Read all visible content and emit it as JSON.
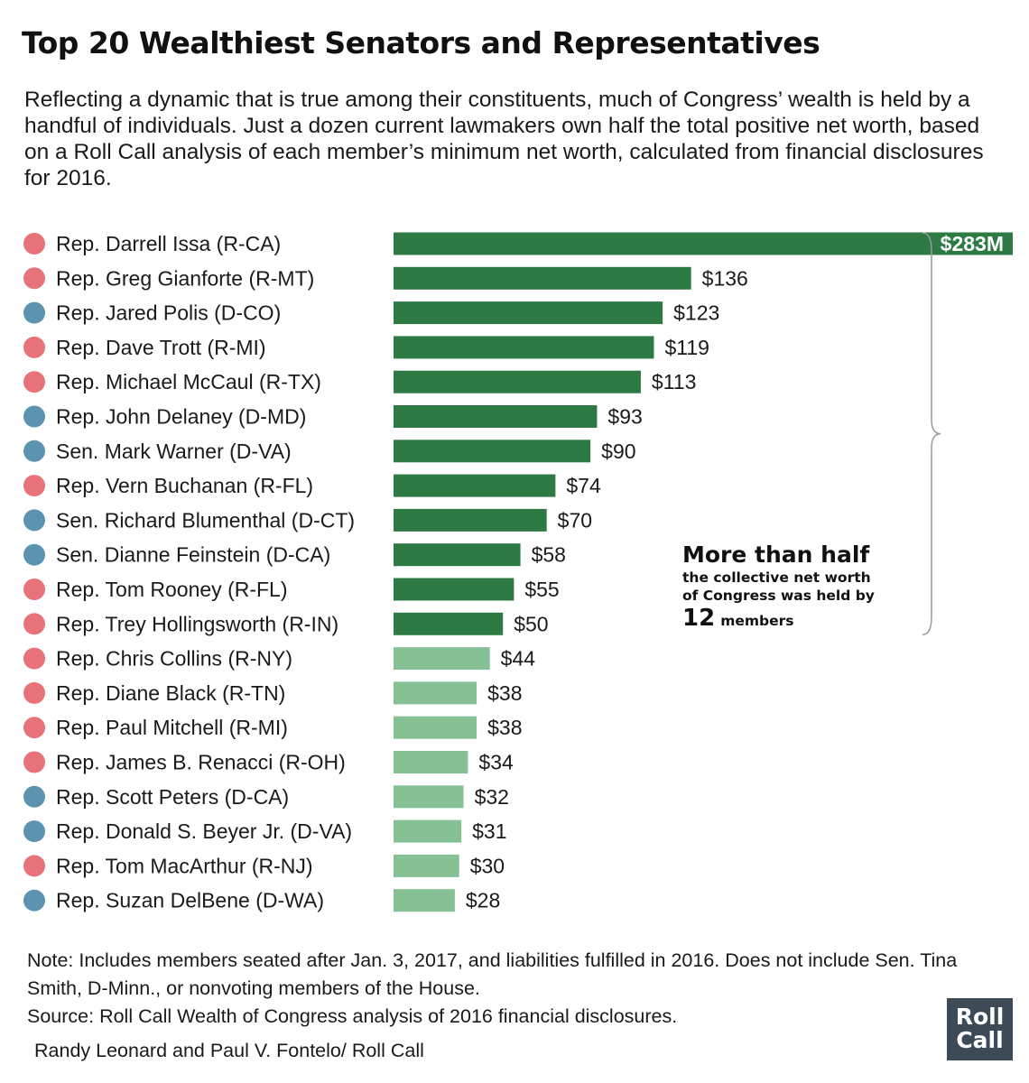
{
  "title": "Top 20 Wealthiest Senators and Representatives",
  "subtitle": "Reflecting a dynamic that is true among their constituents, much of Congress’ wealth is held by a handful of individuals. Just a dozen current lawmakers own half the total positive net worth, based on a Roll Call analysis of each member’s minimum net worth, calculated from financial disclosures for 2016.",
  "colors": {
    "republican": "#e8727a",
    "democrat": "#5b93b0",
    "top_half_bar": "#2e7a45",
    "other_bar": "#86c196",
    "bracket": "#999999"
  },
  "chart_data": {
    "type": "bar",
    "orientation": "horizontal",
    "unit": "millions of dollars",
    "xlim": [
      0,
      283
    ],
    "categories": [
      "Rep. Darrell Issa (R-CA)",
      "Rep. Greg Gianforte (R-MT)",
      "Rep. Jared Polis (D-CO)",
      "Rep. Dave Trott (R-MI)",
      "Rep. Michael McCaul (R-TX)",
      "Rep. John Delaney (D-MD)",
      "Sen. Mark Warner (D-VA)",
      "Rep. Vern Buchanan (R-FL)",
      "Sen. Richard Blumenthal (D-CT)",
      "Sen. Dianne Feinstein (D-CA)",
      "Rep. Tom Rooney (R-FL)",
      "Rep. Trey Hollingsworth (R-IN)",
      "Rep. Chris Collins (R-NY)",
      "Rep. Diane Black (R-TN)",
      "Rep. Paul Mitchell (R-MI)",
      "Rep. James B. Renacci (R-OH)",
      "Rep. Scott Peters (D-CA)",
      "Rep. Donald S. Beyer Jr. (D-VA)",
      "Rep. Tom MacArthur (R-NJ)",
      "Rep. Suzan DelBene (D-WA)"
    ],
    "values": [
      283,
      136,
      123,
      119,
      113,
      93,
      90,
      74,
      70,
      58,
      55,
      50,
      44,
      38,
      38,
      34,
      32,
      31,
      30,
      28
    ],
    "value_labels": [
      "$283M",
      "$136",
      "$123",
      "$119",
      "$113",
      "$93",
      "$90",
      "$74",
      "$70",
      "$58",
      "$55",
      "$50",
      "$44",
      "$38",
      "$38",
      "$34",
      "$32",
      "$31",
      "$30",
      "$28"
    ],
    "party": [
      "R",
      "R",
      "D",
      "R",
      "R",
      "D",
      "D",
      "R",
      "D",
      "D",
      "R",
      "R",
      "R",
      "R",
      "R",
      "R",
      "D",
      "D",
      "R",
      "D"
    ],
    "highlight_top_n": 12,
    "annotation": {
      "headline": "More than half",
      "line1": "the collective net worth",
      "line2": "of Congress was held by",
      "number": "12",
      "suffix": "members"
    }
  },
  "note": "Note: Includes members seated after Jan. 3, 2017, and liabilities fulfilled in 2016. Does not include Sen. Tina Smith, D-Minn., or nonvoting members of the House.",
  "source": "Source: Roll Call Wealth of Congress analysis of 2016 financial disclosures.",
  "credit": "Randy Leonard and Paul V. Fontelo/ Roll Call",
  "logo": {
    "line1": "Roll",
    "line2": "Call"
  }
}
